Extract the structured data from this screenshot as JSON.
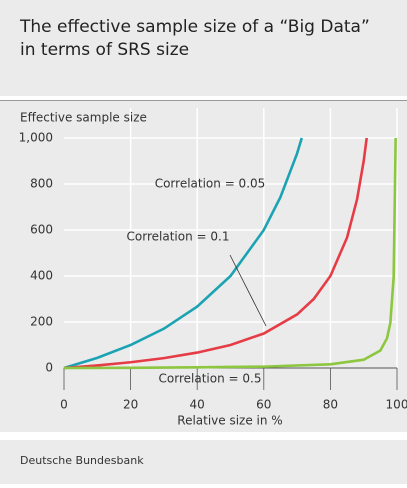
{
  "header": {
    "title_lines": [
      "The effective sample size of a “Big Data”",
      "in terms of SRS size"
    ]
  },
  "chart_data": {
    "type": "line",
    "y_label": "Effective sample size",
    "x_label": "Relative size in %",
    "xlim": [
      0,
      100
    ],
    "xticks": [
      0,
      20,
      40,
      60,
      80,
      100
    ],
    "ylim": [
      0,
      1000
    ],
    "yticks": [
      0,
      200,
      400,
      600,
      800,
      {
        "value": 1000,
        "label": "1,000"
      }
    ],
    "grid": true,
    "series": [
      {
        "name": "Correlation = 0.05",
        "color": "#1ba3b3",
        "x": [
          0,
          10,
          20,
          30,
          40,
          50,
          60,
          65,
          70,
          71.4
        ],
        "values": [
          0,
          44,
          100,
          171,
          267,
          400,
          600,
          743,
          933,
          1000
        ]
      },
      {
        "name": "Correlation = 0.1",
        "color": "#e63c46",
        "x": [
          0,
          10,
          20,
          30,
          40,
          50,
          60,
          70,
          75,
          80,
          85,
          88,
          90,
          90.9
        ],
        "values": [
          0,
          11,
          25,
          43,
          67,
          100,
          150,
          233,
          300,
          400,
          567,
          733,
          900,
          1000
        ]
      },
      {
        "name": "Correlation = 0.5",
        "color": "#8dc63f",
        "x": [
          0,
          20,
          40,
          60,
          80,
          90,
          95,
          97,
          98,
          99,
          99.6
        ],
        "values": [
          0,
          1,
          3,
          6,
          16,
          36,
          76,
          129,
          196,
          396,
          1000
        ]
      }
    ]
  },
  "footer": {
    "source": "Deutsche Bundesbank"
  }
}
